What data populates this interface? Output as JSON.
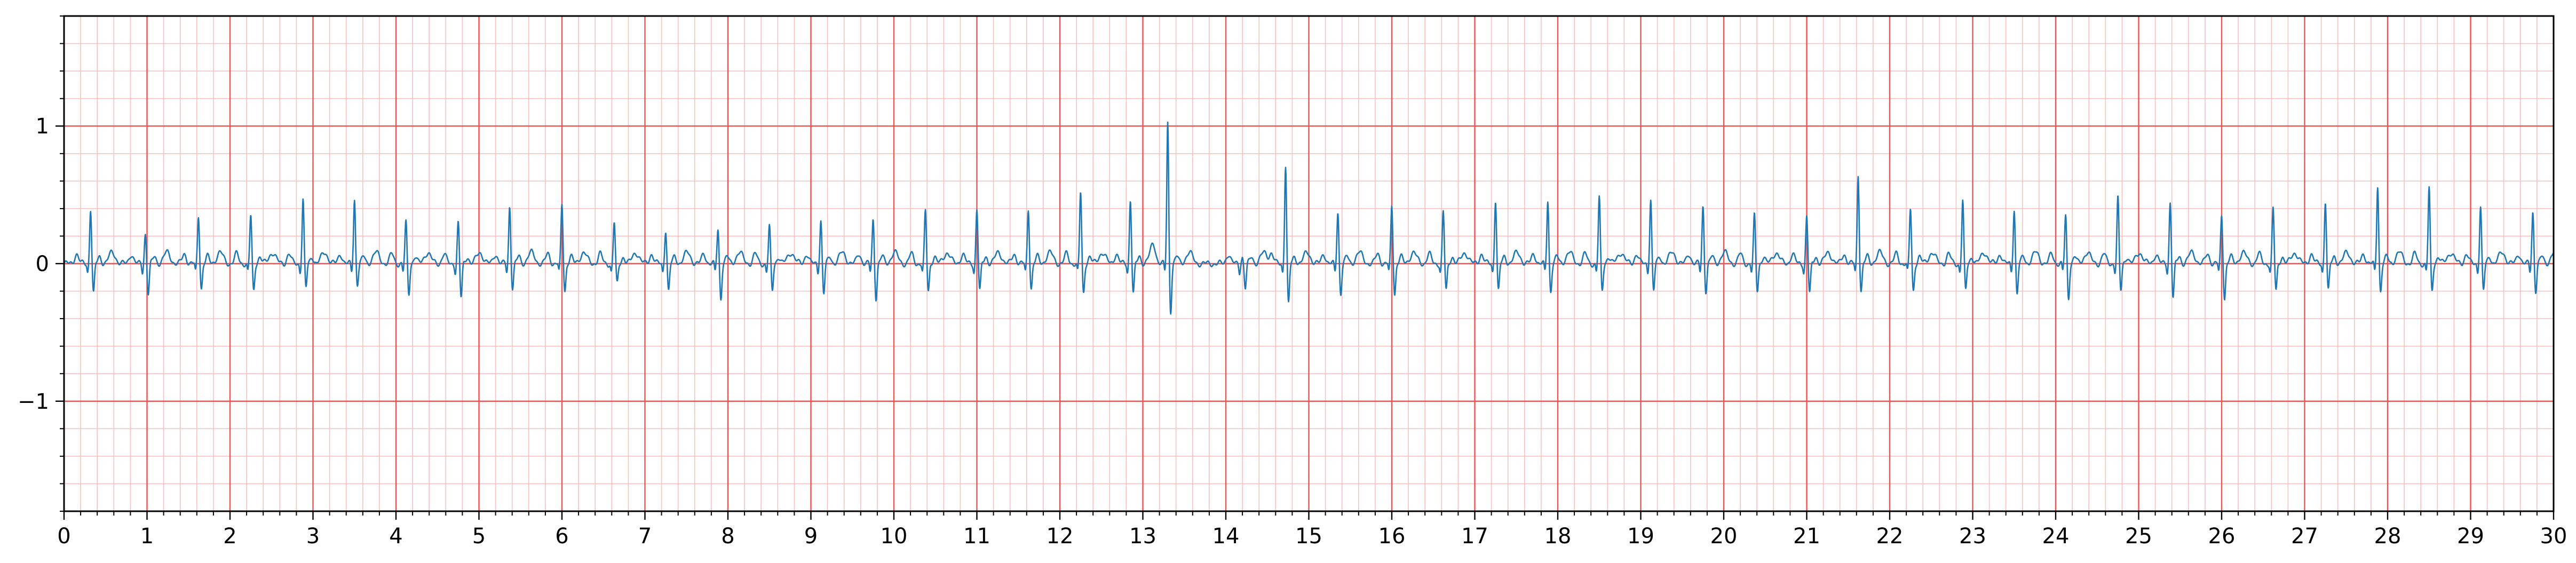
{
  "chart_data": {
    "type": "line",
    "title": "",
    "xlabel": "",
    "ylabel": "",
    "xlim": [
      0,
      30
    ],
    "ylim": [
      -1.8,
      1.8
    ],
    "x_ticks": [
      "0",
      "1",
      "2",
      "3",
      "4",
      "5",
      "6",
      "7",
      "8",
      "9",
      "10",
      "11",
      "12",
      "13",
      "14",
      "15",
      "16",
      "17",
      "18",
      "19",
      "20",
      "21",
      "22",
      "23",
      "24",
      "25",
      "26",
      "27",
      "28",
      "29",
      "30"
    ],
    "y_ticks": [
      "1",
      "0",
      "−1"
    ],
    "y_tick_values": [
      1,
      0,
      -1
    ],
    "grid": "on",
    "grid_major_x": 1,
    "grid_minor_x": 0.2,
    "grid_major_y": 1,
    "grid_minor_y": 0.2,
    "colors": {
      "line": "#1f77b4",
      "grid_major": "#ef5454",
      "grid_minor": "#f8c2c2",
      "axis": "#000000"
    },
    "series": [
      {
        "beat_times": [
          0.32,
          0.98,
          1.62,
          2.25,
          2.88,
          3.5,
          4.12,
          4.75,
          5.37,
          6.0,
          6.63,
          7.25,
          7.88,
          8.5,
          9.12,
          9.75,
          10.38,
          11.0,
          11.62,
          12.25,
          12.85,
          13.3,
          14.2,
          14.72,
          15.35,
          16.0,
          16.62,
          17.25,
          17.88,
          18.5,
          19.12,
          19.75,
          20.37,
          21.0,
          21.62,
          22.25,
          22.88,
          23.5,
          24.12,
          24.75,
          25.38,
          26.0,
          26.62,
          27.25,
          27.88,
          28.5,
          29.12,
          29.75
        ],
        "r_amplitude": [
          0.4,
          0.22,
          0.35,
          0.35,
          0.47,
          0.47,
          0.3,
          0.3,
          0.42,
          0.43,
          0.3,
          0.25,
          0.25,
          0.27,
          0.32,
          0.32,
          0.38,
          0.4,
          0.4,
          0.52,
          0.47,
          1.03,
          0.05,
          0.72,
          0.38,
          0.42,
          0.38,
          0.47,
          0.46,
          0.48,
          0.47,
          0.42,
          0.35,
          0.35,
          0.65,
          0.4,
          0.46,
          0.4,
          0.35,
          0.48,
          0.45,
          0.35,
          0.4,
          0.46,
          0.57,
          0.55,
          0.42,
          0.38
        ],
        "s_amplitude": [
          -0.22,
          -0.22,
          -0.18,
          -0.2,
          -0.18,
          -0.15,
          -0.22,
          -0.25,
          -0.18,
          -0.2,
          -0.15,
          -0.2,
          -0.25,
          -0.2,
          -0.22,
          -0.25,
          -0.2,
          -0.2,
          -0.18,
          -0.22,
          -0.22,
          -0.35,
          -0.18,
          -0.3,
          -0.22,
          -0.22,
          -0.2,
          -0.2,
          -0.2,
          -0.2,
          -0.2,
          -0.2,
          -0.2,
          -0.22,
          -0.2,
          -0.2,
          -0.2,
          -0.22,
          -0.25,
          -0.2,
          -0.25,
          -0.25,
          -0.2,
          -0.2,
          -0.2,
          -0.2,
          -0.2,
          -0.2
        ],
        "baseline": 0
      }
    ]
  }
}
